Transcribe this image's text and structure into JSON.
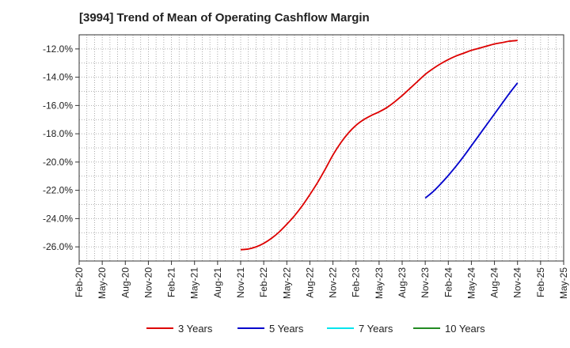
{
  "chart_data": {
    "type": "line",
    "title": "[3994]  Trend of Mean of Operating Cashflow Margin",
    "xlabel": "",
    "ylabel": "",
    "x_ticks": [
      "Feb-20",
      "May-20",
      "Aug-20",
      "Nov-20",
      "Feb-21",
      "May-21",
      "Aug-21",
      "Nov-21",
      "Feb-22",
      "May-22",
      "Aug-22",
      "Nov-22",
      "Feb-23",
      "May-23",
      "Aug-23",
      "Nov-23",
      "Feb-24",
      "May-24",
      "Aug-24",
      "Nov-24",
      "Feb-25",
      "May-25"
    ],
    "y_ticks": [
      "-12.0%",
      "-14.0%",
      "-16.0%",
      "-18.0%",
      "-20.0%",
      "-22.0%",
      "-24.0%",
      "-26.0%"
    ],
    "y_tick_values": [
      -12,
      -14,
      -16,
      -18,
      -20,
      -22,
      -24,
      -26
    ],
    "ylim": [
      -27,
      -11
    ],
    "grid": true,
    "legend_position": "bottom",
    "series": [
      {
        "name": "3 Years",
        "color": "#dd0000",
        "x": [
          "Nov-21",
          "Dec-21",
          "Jan-22",
          "Feb-22",
          "Mar-22",
          "Apr-22",
          "May-22",
          "Jun-22",
          "Jul-22",
          "Aug-22",
          "Sep-22",
          "Oct-22",
          "Nov-22",
          "Dec-22",
          "Jan-23",
          "Feb-23",
          "Mar-23",
          "Apr-23",
          "May-23",
          "Jun-23",
          "Jul-23",
          "Aug-23",
          "Sep-23",
          "Oct-23",
          "Nov-23",
          "Dec-23",
          "Jan-24",
          "Feb-24",
          "Mar-24",
          "Apr-24",
          "May-24",
          "Jun-24",
          "Jul-24",
          "Aug-24",
          "Sep-24",
          "Oct-24",
          "Nov-24"
        ],
        "values": [
          -26.2,
          -26.15,
          -26.0,
          -25.75,
          -25.4,
          -24.95,
          -24.4,
          -23.8,
          -23.1,
          -22.3,
          -21.45,
          -20.5,
          -19.5,
          -18.65,
          -17.95,
          -17.4,
          -17.0,
          -16.7,
          -16.45,
          -16.15,
          -15.75,
          -15.3,
          -14.8,
          -14.3,
          -13.8,
          -13.4,
          -13.05,
          -12.75,
          -12.5,
          -12.3,
          -12.1,
          -11.95,
          -11.8,
          -11.65,
          -11.55,
          -11.45,
          -11.4
        ]
      },
      {
        "name": "5 Years",
        "color": "#0000cc",
        "x": [
          "Nov-23",
          "Dec-23",
          "Jan-24",
          "Feb-24",
          "Mar-24",
          "Apr-24",
          "May-24",
          "Jun-24",
          "Jul-24",
          "Aug-24",
          "Sep-24",
          "Oct-24",
          "Nov-24"
        ],
        "values": [
          -22.55,
          -22.1,
          -21.55,
          -20.95,
          -20.3,
          -19.6,
          -18.85,
          -18.1,
          -17.35,
          -16.6,
          -15.85,
          -15.1,
          -14.4
        ]
      },
      {
        "name": "7 Years",
        "color": "#00e5ee",
        "x": [],
        "values": []
      },
      {
        "name": "10 Years",
        "color": "#228b22",
        "x": [],
        "values": []
      }
    ]
  }
}
